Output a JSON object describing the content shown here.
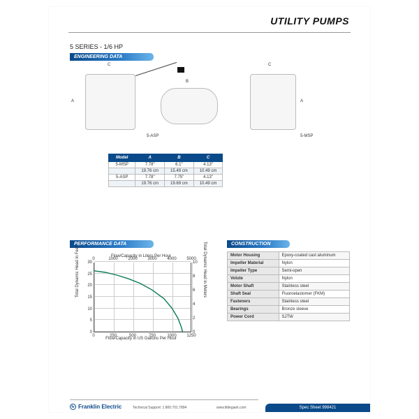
{
  "header": {
    "title": "UTILITY PUMPS"
  },
  "subhead": "5 SERIES - 1/6 HP",
  "bars": {
    "eng": "ENGINEERING DATA",
    "perf": "PERFORMANCE DATA",
    "cons": "CONSTRUCTION"
  },
  "drawings": {
    "labels": {
      "A": "A",
      "B": "B",
      "C": "C"
    },
    "product_labels": {
      "asp": "5-ASP",
      "msp": "5-MSP"
    }
  },
  "dim_table": {
    "headers": [
      "Model",
      "A",
      "B",
      "C"
    ],
    "rows": [
      [
        "5-MSP",
        "7.78\"",
        "6.1\"",
        "4.13\""
      ],
      [
        "",
        "19.76 cm",
        "15.49 cm",
        "10.49 cm"
      ],
      [
        "5-ASP",
        "7.78\"",
        "7.75\"",
        "4.13\""
      ],
      [
        "",
        "19.76 cm",
        "19.69 cm",
        "10.49 cm"
      ]
    ]
  },
  "chart": {
    "type": "line",
    "title_top": "Flow/Capacity in Liters Per Hour",
    "title_bottom": "Flow/Capacity in US Gallons Per Hour",
    "ylabel_left": "Total Dynamic Head in Feet",
    "ylabel_right": "Total Dynamic Head in Meters",
    "x_gph": [
      0,
      250,
      500,
      750,
      1000,
      1250
    ],
    "x_lph": [
      0,
      1000,
      2000,
      3000,
      4000,
      5000
    ],
    "y_ft": [
      0,
      5,
      10,
      15,
      20,
      25,
      30
    ],
    "y_m_max": 10,
    "xlim": [
      0,
      1250
    ],
    "ylim": [
      0,
      30
    ],
    "line_color": "#0a7a5a",
    "line_width": 1.4,
    "grid_color": "#cccccc",
    "background_color": "#ffffff",
    "series": {
      "gph": [
        0,
        150,
        300,
        450,
        600,
        750,
        900,
        1000,
        1080,
        1120,
        1140
      ],
      "head": [
        26.5,
        25.8,
        24.6,
        23.0,
        21.0,
        18.2,
        14.5,
        10.5,
        6.0,
        2.5,
        0
      ]
    }
  },
  "construction": {
    "rows": [
      [
        "Motor Housing",
        "Epoxy-coated cast aluminum"
      ],
      [
        "Impeller Material",
        "Nylon"
      ],
      [
        "Impeller Type",
        "Semi-open"
      ],
      [
        "Volute",
        "Nylon"
      ],
      [
        "Motor Shaft",
        "Stainless steel"
      ],
      [
        "Shaft Seal",
        "Fluoroelastomer (FKM)"
      ],
      [
        "Fasteners",
        "Stainless steel"
      ],
      [
        "Bearings",
        "Bronze sleeve"
      ],
      [
        "Power Cord",
        "SJTW"
      ]
    ]
  },
  "footer": {
    "brand": "Franklin Electric",
    "support": "Technical Support: 1.800.701.7894",
    "site": "www.littlegiant.com",
    "spec": "Spec Sheet 998421"
  }
}
